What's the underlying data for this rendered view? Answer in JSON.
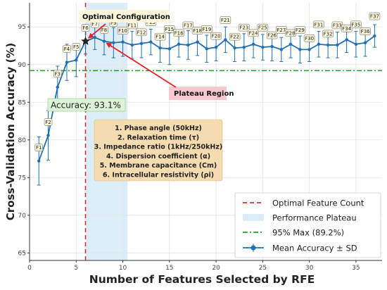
{
  "chart_data": {
    "type": "line",
    "xlabel": "Number of Features Selected by RFE",
    "ylabel": "Cross-Validation Accuracy (%)",
    "xlim": [
      0,
      37.8
    ],
    "ylim": [
      64,
      98.2
    ],
    "xticks": [
      0,
      5,
      10,
      15,
      20,
      25,
      30,
      35
    ],
    "yticks": [
      65,
      70,
      75,
      80,
      85,
      90,
      95
    ],
    "grid": true,
    "series": [
      {
        "name": "Mean Accuracy ± SD",
        "x": [
          1,
          2,
          3,
          4,
          5,
          6,
          7,
          8,
          9,
          10,
          11,
          12,
          13,
          14,
          15,
          16,
          17,
          18,
          19,
          20,
          21,
          22,
          23,
          24,
          25,
          26,
          27,
          28,
          29,
          30,
          31,
          32,
          33,
          34,
          35,
          36,
          37
        ],
        "y": [
          77.2,
          80.6,
          87.0,
          90.3,
          90.6,
          93.1,
          93.6,
          93.1,
          92.9,
          93.0,
          92.6,
          92.8,
          93.0,
          92.2,
          92.1,
          92.7,
          92.6,
          93.0,
          92.1,
          92.3,
          93.3,
          92.2,
          92.3,
          92.7,
          92.3,
          92.4,
          92.0,
          92.7,
          92.0,
          92.0,
          92.7,
          92.6,
          92.6,
          93.3,
          92.7,
          92.9,
          93.8
        ],
        "sd": [
          3.2,
          3.3,
          2.8,
          2.4,
          2.2,
          1.7,
          1.6,
          1.8,
          2.0,
          1.9,
          1.8,
          1.9,
          1.7,
          1.9,
          2.1,
          1.7,
          1.9,
          1.8,
          1.8,
          1.8,
          1.7,
          1.8,
          1.8,
          1.8,
          1.7,
          1.9,
          1.6,
          1.8,
          1.8,
          1.6,
          1.7,
          1.7,
          1.7,
          1.7,
          1.7,
          1.8,
          1.5
        ],
        "labels": [
          "F1",
          "F2",
          "F3",
          "F4",
          "F5",
          "F6",
          "F7",
          "F8",
          "F9",
          "F10",
          "F11",
          "F12",
          "F13",
          "F14",
          "F15",
          "F16",
          "F17",
          "F18",
          "F19",
          "F20",
          "F21",
          "F22",
          "F23",
          "F24",
          "F25",
          "F26",
          "F27",
          "F28",
          "F29",
          "F30",
          "F31",
          "F32",
          "F33",
          "F34",
          "F35",
          "F36",
          "F37"
        ]
      }
    ],
    "optimal_feature_count": 6,
    "plateau_range": [
      6,
      10.5
    ],
    "max95_value": 89.2,
    "annotations": {
      "optimal": "Optimal Configuration",
      "plateau": "Plateau Region",
      "accuracy": "Accuracy: 93.1%",
      "ranking": [
        "1. Phase angle (50kHz)",
        "2. Relaxation time (τ)",
        "3. Impedance ratio (1kHz/250kHz)",
        "4. Dispersion coefficient (α)",
        "5. Membrane capacitance (Cm)",
        "6. Intracellular resistivity (ρi)"
      ]
    },
    "legend": {
      "position": "bottom-right",
      "entries": [
        "Optimal Feature Count",
        "Performance Plateau",
        "95% Max (89.2%)",
        "Mean Accuracy ± SD"
      ]
    },
    "colors": {
      "series": "#1f6fb4",
      "optimal_line": "#e03030",
      "plateau": "#dcedf7",
      "max95_line": "#2ca02c",
      "arrow": "#e8202a",
      "label_box": "#fbf6d9",
      "plateau_box": "#f8c8cf",
      "accuracy_box": "#dcf3d6",
      "ranking_box": "#f5dcb0"
    }
  }
}
